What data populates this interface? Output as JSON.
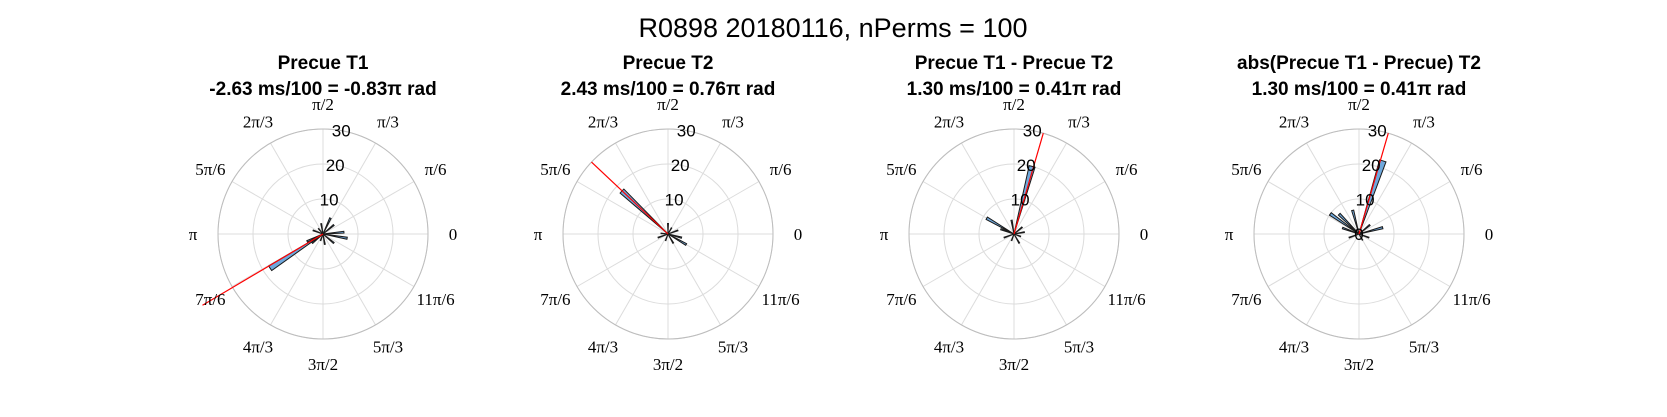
{
  "figure": {
    "suptitle": "R0898 20180116, nPerms = 100"
  },
  "chart_data": [
    {
      "type": "polar-histogram",
      "title": "Precue T1",
      "subtitle": "-2.63 ms/100 = -0.83π rad",
      "rlim": [
        0,
        30
      ],
      "rticks": [
        "10",
        "20",
        "30"
      ],
      "angle_labels": [
        "0",
        "π/6",
        "π/3",
        "π/2",
        "2π/3",
        "5π/6",
        "π",
        "7π/6",
        "4π/3",
        "3π/2",
        "5π/3",
        "11π/6"
      ],
      "grid": true,
      "bin_width_deg": 5,
      "bins": [
        {
          "theta_deg": 213,
          "value": 18
        },
        {
          "theta_deg": 205,
          "value": 5
        },
        {
          "theta_deg": 220,
          "value": 4
        },
        {
          "theta_deg": 350,
          "value": 7
        },
        {
          "theta_deg": 5,
          "value": 6
        },
        {
          "theta_deg": 40,
          "value": 4
        },
        {
          "theta_deg": 65,
          "value": 5
        },
        {
          "theta_deg": 100,
          "value": 3
        },
        {
          "theta_deg": 160,
          "value": 3
        },
        {
          "theta_deg": 280,
          "value": 3
        },
        {
          "theta_deg": 320,
          "value": 4
        },
        {
          "theta_deg": 250,
          "value": 2
        },
        {
          "theta_deg": 130,
          "value": 2
        }
      ],
      "mean_angle_deg": 210.6,
      "mean_line_length": 40
    },
    {
      "type": "polar-histogram",
      "title": "Precue T2",
      "subtitle": "2.43 ms/100 = 0.76π rad",
      "rlim": [
        0,
        30
      ],
      "rticks": [
        "10",
        "20",
        "30"
      ],
      "angle_labels": [
        "0",
        "π/6",
        "π/3",
        "π/2",
        "2π/3",
        "5π/6",
        "π",
        "7π/6",
        "4π/3",
        "3π/2",
        "5π/3",
        "11π/6"
      ],
      "grid": true,
      "bin_width_deg": 5,
      "bins": [
        {
          "theta_deg": 137,
          "value": 18
        },
        {
          "theta_deg": 330,
          "value": 6
        },
        {
          "theta_deg": 345,
          "value": 4
        },
        {
          "theta_deg": 20,
          "value": 3
        },
        {
          "theta_deg": 90,
          "value": 3
        },
        {
          "theta_deg": 200,
          "value": 3
        },
        {
          "theta_deg": 250,
          "value": 2
        },
        {
          "theta_deg": 300,
          "value": 3
        },
        {
          "theta_deg": 175,
          "value": 2
        },
        {
          "theta_deg": 60,
          "value": 2
        }
      ],
      "mean_angle_deg": 136.8,
      "mean_line_length": 30
    },
    {
      "type": "polar-histogram",
      "title": "Precue T1 - Precue T2",
      "subtitle": "1.30 ms/100 = 0.41π rad",
      "rlim": [
        0,
        30
      ],
      "rticks": [
        "10",
        "20",
        "30"
      ],
      "angle_labels": [
        "0",
        "π/6",
        "π/3",
        "π/2",
        "2π/3",
        "5π/6",
        "π",
        "7π/6",
        "4π/3",
        "3π/2",
        "5π/3",
        "11π/6"
      ],
      "grid": true,
      "bin_width_deg": 5,
      "bins": [
        {
          "theta_deg": 75,
          "value": 20
        },
        {
          "theta_deg": 150,
          "value": 9
        },
        {
          "theta_deg": 160,
          "value": 4
        },
        {
          "theta_deg": 100,
          "value": 4
        },
        {
          "theta_deg": 10,
          "value": 3
        },
        {
          "theta_deg": 200,
          "value": 3
        },
        {
          "theta_deg": 250,
          "value": 2
        },
        {
          "theta_deg": 300,
          "value": 3
        },
        {
          "theta_deg": 340,
          "value": 2
        },
        {
          "theta_deg": 40,
          "value": 3
        }
      ],
      "mean_angle_deg": 73.8,
      "mean_line_length": 30
    },
    {
      "type": "polar-histogram",
      "title": "abs(Precue T1 - Precue) T2",
      "subtitle": "1.30 ms/100 = 0.41π rad",
      "rlim": [
        0,
        30
      ],
      "rticks": [
        "0",
        "10",
        "20",
        "30"
      ],
      "angle_labels": [
        "0",
        "π/6",
        "π/3",
        "π/2",
        "2π/3",
        "5π/6",
        "π",
        "7π/6",
        "4π/3",
        "3π/2",
        "5π/3",
        "11π/6"
      ],
      "grid": true,
      "bin_width_deg": 5,
      "bins": [
        {
          "theta_deg": 72,
          "value": 22
        },
        {
          "theta_deg": 145,
          "value": 10
        },
        {
          "theta_deg": 135,
          "value": 8
        },
        {
          "theta_deg": 105,
          "value": 7
        },
        {
          "theta_deg": 15,
          "value": 7
        },
        {
          "theta_deg": 160,
          "value": 5
        },
        {
          "theta_deg": 40,
          "value": 4
        },
        {
          "theta_deg": 200,
          "value": 3
        },
        {
          "theta_deg": 300,
          "value": 2
        },
        {
          "theta_deg": 340,
          "value": 3
        }
      ],
      "mean_angle_deg": 73.8,
      "mean_line_length": 30
    }
  ]
}
